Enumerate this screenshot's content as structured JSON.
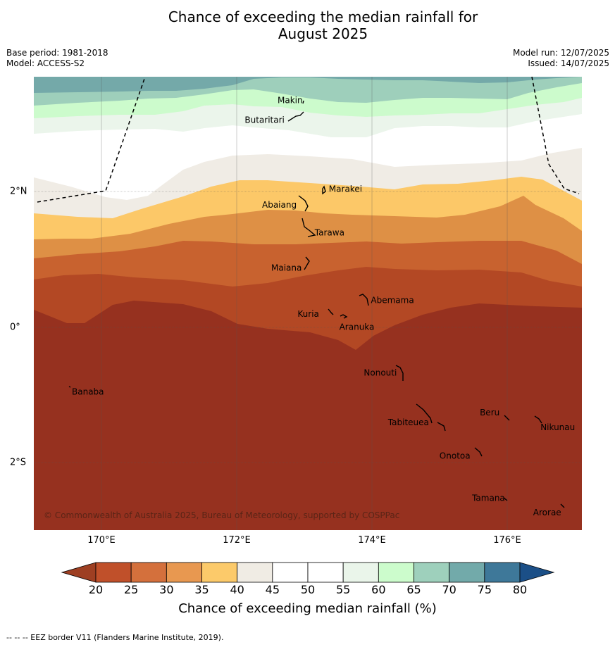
{
  "title_line1": "Chance of exceeding the median rainfall for",
  "title_line2": "August 2025",
  "base_period": "Base period: 1981-2018",
  "model": "Model: ACCESS-S2",
  "model_run": "Model run: 12/07/2025",
  "issued": "Issued: 14/07/2025",
  "copyright": "© Commonwealth of Australia 2025, Bureau of Meteorology, supported by COSPPac",
  "footnote": "--  --  -- EEZ border V11 (Flanders Marine Institute, 2019).",
  "colorbar": {
    "label": "Chance of exceeding median rainfall (%)",
    "ticks": [
      "20",
      "25",
      "30",
      "35",
      "40",
      "45",
      "50",
      "55",
      "60",
      "65",
      "70",
      "75",
      "80"
    ],
    "colors": [
      "#9e3f22",
      "#c0502a",
      "#d4703c",
      "#e89850",
      "#fcca6a",
      "#f0ece4",
      "#ffffff",
      "#ffffff",
      "#eaf5ea",
      "#ccfccc",
      "#9ed0bc",
      "#72aaaa",
      "#3e7899",
      "#1b4f87"
    ]
  },
  "axes": {
    "lon_labels": [
      "170°E",
      "172°E",
      "174°E",
      "176°E"
    ],
    "lat_labels": [
      "2°N",
      "0°",
      "2°S"
    ]
  },
  "places": [
    {
      "name": "Makin",
      "lon": 173.0,
      "lat": 3.35
    },
    {
      "name": "Butaritari",
      "lon": 172.9,
      "lat": 3.1
    },
    {
      "name": "Marakei",
      "lon": 173.3,
      "lat": 2.0
    },
    {
      "name": "Abaiang",
      "lon": 173.0,
      "lat": 1.85
    },
    {
      "name": "Tarawa",
      "lon": 173.05,
      "lat": 1.4
    },
    {
      "name": "Maiana",
      "lon": 173.0,
      "lat": 0.9
    },
    {
      "name": "Abemama",
      "lon": 173.9,
      "lat": 0.4
    },
    {
      "name": "Kuria",
      "lon": 173.4,
      "lat": 0.22
    },
    {
      "name": "Aranuka",
      "lon": 173.6,
      "lat": 0.17
    },
    {
      "name": "Banaba",
      "lon": 169.5,
      "lat": -0.87
    },
    {
      "name": "Nonouti",
      "lon": 174.4,
      "lat": -0.65
    },
    {
      "name": "Tabiteuea",
      "lon": 174.8,
      "lat": -1.3
    },
    {
      "name": "Beru",
      "lon": 175.98,
      "lat": -1.3
    },
    {
      "name": "Nikunau",
      "lon": 176.45,
      "lat": -1.35
    },
    {
      "name": "Onotoa",
      "lon": 175.55,
      "lat": -1.8
    },
    {
      "name": "Tamana",
      "lon": 175.98,
      "lat": -2.5
    },
    {
      "name": "Arorae",
      "lon": 176.8,
      "lat": -2.65
    }
  ]
}
